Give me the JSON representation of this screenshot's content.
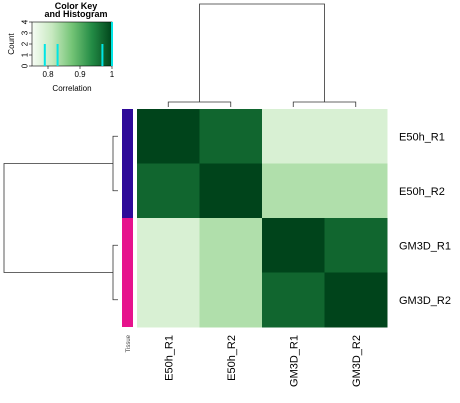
{
  "chart_data": {
    "type": "heatmap",
    "rows": [
      "E50h_R1",
      "E50h_R2",
      "GM3D_R1",
      "GM3D_R2"
    ],
    "columns": [
      "E50h_R1",
      "E50h_R2",
      "GM3D_R1",
      "GM3D_R2"
    ],
    "values": [
      [
        1.0,
        0.97,
        0.79,
        0.79
      ],
      [
        0.97,
        1.0,
        0.83,
        0.83
      ],
      [
        0.79,
        0.83,
        1.0,
        0.97
      ],
      [
        0.79,
        0.83,
        0.97,
        1.0
      ]
    ],
    "color_scale": {
      "min": 0.75,
      "max": 1.0,
      "low": "#f7fcf5",
      "high": "#00441b"
    },
    "color_key": {
      "title_line1": "Color Key",
      "title_line2": "and Histogram",
      "xlabel": "Correlation",
      "ylabel": "Count",
      "x_ticks": [
        "0.8",
        "0.9",
        "1"
      ],
      "y_ticks": [
        "0",
        "1",
        "2",
        "3",
        "4"
      ],
      "histogram": [
        {
          "x": 0.79,
          "count": 2
        },
        {
          "x": 0.83,
          "count": 2
        },
        {
          "x": 0.97,
          "count": 2
        },
        {
          "x": 1.0,
          "count": 4
        }
      ],
      "line_color": "#00e5e5"
    },
    "side_annotation": {
      "label": "Tissue",
      "groups": [
        {
          "rows": [
            "E50h_R1",
            "E50h_R2"
          ],
          "color": "#2e0a99"
        },
        {
          "rows": [
            "GM3D_R1",
            "GM3D_R2"
          ],
          "color": "#e6138c"
        }
      ]
    },
    "row_dendrogram": true,
    "column_dendrogram": true
  }
}
